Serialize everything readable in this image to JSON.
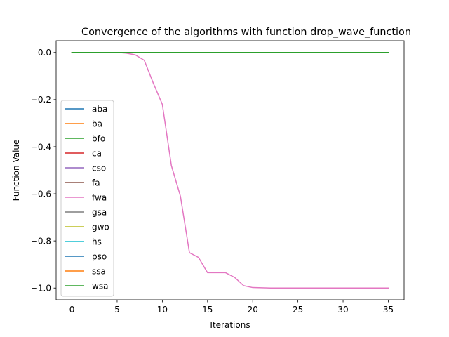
{
  "chart_data": {
    "type": "line",
    "title": "Convergence of the algorithms with function drop_wave_function",
    "xlabel": "Iterations",
    "ylabel": "Function Value",
    "xlim": [
      -1.75,
      36.75
    ],
    "ylim": [
      -1.05,
      0.05
    ],
    "xticks": [
      0,
      5,
      10,
      15,
      20,
      25,
      30,
      35
    ],
    "xtick_labels": [
      "0",
      "5",
      "10",
      "15",
      "20",
      "25",
      "30",
      "35"
    ],
    "yticks": [
      0.0,
      -0.2,
      -0.4,
      -0.6,
      -0.8,
      -1.0
    ],
    "ytick_labels": [
      "0.0",
      "−0.2",
      "−0.4",
      "−0.6",
      "−0.8",
      "−1.0"
    ],
    "grid": false,
    "legend_position": "center-left",
    "x": [
      0,
      1,
      2,
      3,
      4,
      5,
      6,
      7,
      8,
      9,
      10,
      11,
      12,
      13,
      14,
      15,
      16,
      17,
      18,
      19,
      20,
      21,
      22,
      23,
      24,
      25,
      26,
      27,
      28,
      29,
      30,
      31,
      32,
      33,
      34,
      35
    ],
    "series": [
      {
        "name": "aba",
        "color": "#1f77b4",
        "values": [
          0,
          0,
          0,
          0,
          0,
          0,
          0,
          0,
          0,
          0,
          0,
          0,
          0,
          0,
          0,
          0,
          0,
          0,
          0,
          0,
          0,
          0,
          0,
          0,
          0,
          0,
          0,
          0,
          0,
          0,
          0,
          0,
          0,
          0,
          0,
          0
        ]
      },
      {
        "name": "ba",
        "color": "#ff7f0e",
        "values": [
          0,
          0,
          0,
          0,
          0,
          0,
          0,
          0,
          0,
          0,
          0,
          0,
          0,
          0,
          0,
          0,
          0,
          0,
          0,
          0,
          0,
          0,
          0,
          0,
          0,
          0,
          0,
          0,
          0,
          0,
          0,
          0,
          0,
          0,
          0,
          0
        ]
      },
      {
        "name": "bfo",
        "color": "#2ca02c",
        "values": [
          0,
          0,
          0,
          0,
          0,
          0,
          0,
          0,
          0,
          0,
          0,
          0,
          0,
          0,
          0,
          0,
          0,
          0,
          0,
          0,
          0,
          0,
          0,
          0,
          0,
          0,
          0,
          0,
          0,
          0,
          0,
          0,
          0,
          0,
          0,
          0
        ]
      },
      {
        "name": "ca",
        "color": "#d62728",
        "values": [
          0,
          0,
          0,
          0,
          0,
          0,
          0,
          0,
          0,
          0,
          0,
          0,
          0,
          0,
          0,
          0,
          0,
          0,
          0,
          0,
          0,
          0,
          0,
          0,
          0,
          0,
          0,
          0,
          0,
          0,
          0,
          0,
          0,
          0,
          0,
          0
        ]
      },
      {
        "name": "cso",
        "color": "#9467bd",
        "values": [
          0,
          0,
          0,
          0,
          0,
          0,
          0,
          0,
          0,
          0,
          0,
          0,
          0,
          0,
          0,
          0,
          0,
          0,
          0,
          0,
          0,
          0,
          0,
          0,
          0,
          0,
          0,
          0,
          0,
          0,
          0,
          0,
          0,
          0,
          0,
          0
        ]
      },
      {
        "name": "fa",
        "color": "#8c564b",
        "values": [
          0,
          0,
          0,
          0,
          0,
          0,
          0,
          0,
          0,
          0,
          0,
          0,
          0,
          0,
          0,
          0,
          0,
          0,
          0,
          0,
          0,
          0,
          0,
          0,
          0,
          0,
          0,
          0,
          0,
          0,
          0,
          0,
          0,
          0,
          0,
          0
        ]
      },
      {
        "name": "fwa",
        "color": "#e377c2",
        "values": [
          0,
          0,
          0,
          0,
          0,
          0,
          -0.003,
          -0.01,
          -0.033,
          -0.13,
          -0.22,
          -0.48,
          -0.61,
          -0.85,
          -0.87,
          -0.935,
          -0.935,
          -0.935,
          -0.955,
          -0.99,
          -0.998,
          -0.999,
          -1,
          -1,
          -1,
          -1,
          -1,
          -1,
          -1,
          -1,
          -1,
          -1,
          -1,
          -1,
          -1,
          -1
        ]
      },
      {
        "name": "gsa",
        "color": "#7f7f7f",
        "values": [
          0,
          0,
          0,
          0,
          0,
          0,
          0,
          0,
          0,
          0,
          0,
          0,
          0,
          0,
          0,
          0,
          0,
          0,
          0,
          0,
          0,
          0,
          0,
          0,
          0,
          0,
          0,
          0,
          0,
          0,
          0,
          0,
          0,
          0,
          0,
          0
        ]
      },
      {
        "name": "gwo",
        "color": "#bcbd22",
        "values": [
          0,
          0,
          0,
          0,
          0,
          0,
          0,
          0,
          0,
          0,
          0,
          0,
          0,
          0,
          0,
          0,
          0,
          0,
          0,
          0,
          0,
          0,
          0,
          0,
          0,
          0,
          0,
          0,
          0,
          0,
          0,
          0,
          0,
          0,
          0,
          0
        ]
      },
      {
        "name": "hs",
        "color": "#17becf",
        "values": [
          0,
          0,
          0,
          0,
          0,
          0,
          0,
          0,
          0,
          0,
          0,
          0,
          0,
          0,
          0,
          0,
          0,
          0,
          0,
          0,
          0,
          0,
          0,
          0,
          0,
          0,
          0,
          0,
          0,
          0,
          0,
          0,
          0,
          0,
          0,
          0
        ]
      },
      {
        "name": "pso",
        "color": "#1f77b4",
        "values": [
          0,
          0,
          0,
          0,
          0,
          0,
          0,
          0,
          0,
          0,
          0,
          0,
          0,
          0,
          0,
          0,
          0,
          0,
          0,
          0,
          0,
          0,
          0,
          0,
          0,
          0,
          0,
          0,
          0,
          0,
          0,
          0,
          0,
          0,
          0,
          0
        ]
      },
      {
        "name": "ssa",
        "color": "#ff7f0e",
        "values": [
          0,
          0,
          0,
          0,
          0,
          0,
          0,
          0,
          0,
          0,
          0,
          0,
          0,
          0,
          0,
          0,
          0,
          0,
          0,
          0,
          0,
          0,
          0,
          0,
          0,
          0,
          0,
          0,
          0,
          0,
          0,
          0,
          0,
          0,
          0,
          0
        ]
      },
      {
        "name": "wsa",
        "color": "#2ca02c",
        "values": [
          0,
          0,
          0,
          0,
          0,
          0,
          0,
          0,
          0,
          0,
          0,
          0,
          0,
          0,
          0,
          0,
          0,
          0,
          0,
          0,
          0,
          0,
          0,
          0,
          0,
          0,
          0,
          0,
          0,
          0,
          0,
          0,
          0,
          0,
          0,
          0
        ]
      }
    ]
  }
}
